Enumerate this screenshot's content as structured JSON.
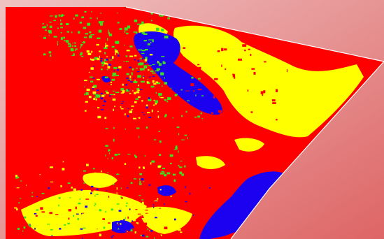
{
  "background": {
    "gradient_light": "#efc3c3",
    "gradient_dark": "#de6565"
  },
  "classes": [
    {
      "key": "red",
      "color": "#ff0000"
    },
    {
      "key": "yellow",
      "color": "#ffff00"
    },
    {
      "key": "blue",
      "color": "#1c00f0"
    },
    {
      "key": "green",
      "color": "#39e21a"
    }
  ],
  "swath": {
    "edge_color": "#ffffff"
  }
}
